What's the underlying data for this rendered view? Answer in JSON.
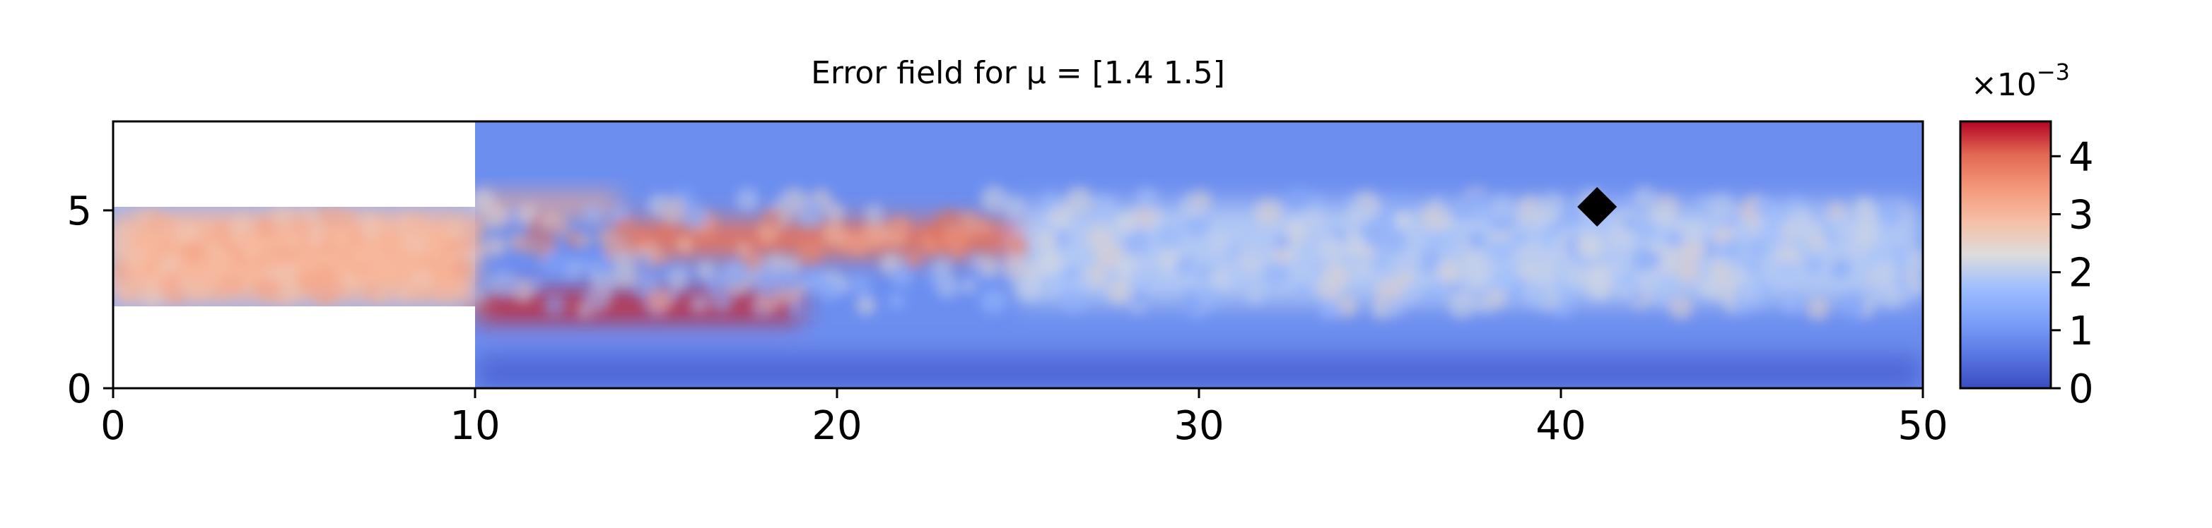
{
  "chart_data": {
    "type": "heatmap",
    "title": "Error field for μ = [1.4 1.5]",
    "xlabel": "",
    "ylabel": "",
    "xlim": [
      0,
      50
    ],
    "ylim": [
      0,
      7.5
    ],
    "xticks": [
      0,
      10,
      20,
      30,
      40,
      50
    ],
    "xtick_labels": [
      "0",
      "10",
      "20",
      "30",
      "40",
      "50"
    ],
    "yticks": [
      0,
      5
    ],
    "ytick_labels": [
      "0",
      "5"
    ],
    "domain": {
      "inlet_channel": {
        "x": [
          0,
          10
        ],
        "y": [
          2.3,
          5.1
        ]
      },
      "main_channel": {
        "x": [
          10,
          50
        ],
        "y": [
          0,
          7.5
        ]
      }
    },
    "marker": {
      "shape": "diamond",
      "x": 41,
      "y": 5.1,
      "color": "#000000"
    },
    "colorbar": {
      "colormap": "coolwarm",
      "range": [
        0,
        4.6
      ],
      "ticks": [
        0,
        1,
        2,
        3,
        4
      ],
      "tick_labels": [
        "0",
        "1",
        "2",
        "3",
        "4"
      ],
      "scale_label": "×10",
      "scale_exponent": "−3"
    },
    "field_regions": [
      {
        "desc": "inlet core",
        "x": [
          0,
          10
        ],
        "y": [
          2.4,
          5.0
        ],
        "value": 3.0
      },
      {
        "desc": "upper jet",
        "x": [
          14,
          25
        ],
        "y": [
          3.7,
          4.7
        ],
        "value": 3.9
      },
      {
        "desc": "lower shear layer",
        "x": [
          10,
          19
        ],
        "y": [
          1.9,
          2.7
        ],
        "value": 4.4
      },
      {
        "desc": "upper lip",
        "x": [
          10,
          14
        ],
        "y": [
          4.9,
          5.4
        ],
        "value": 3.2
      },
      {
        "desc": "downstream core",
        "x": [
          25,
          50
        ],
        "y": [
          2.4,
          5.2
        ],
        "value": 1.9
      },
      {
        "desc": "walls",
        "x": [
          10,
          50
        ],
        "y": [
          0,
          0.9
        ],
        "value": 0.3
      }
    ]
  }
}
